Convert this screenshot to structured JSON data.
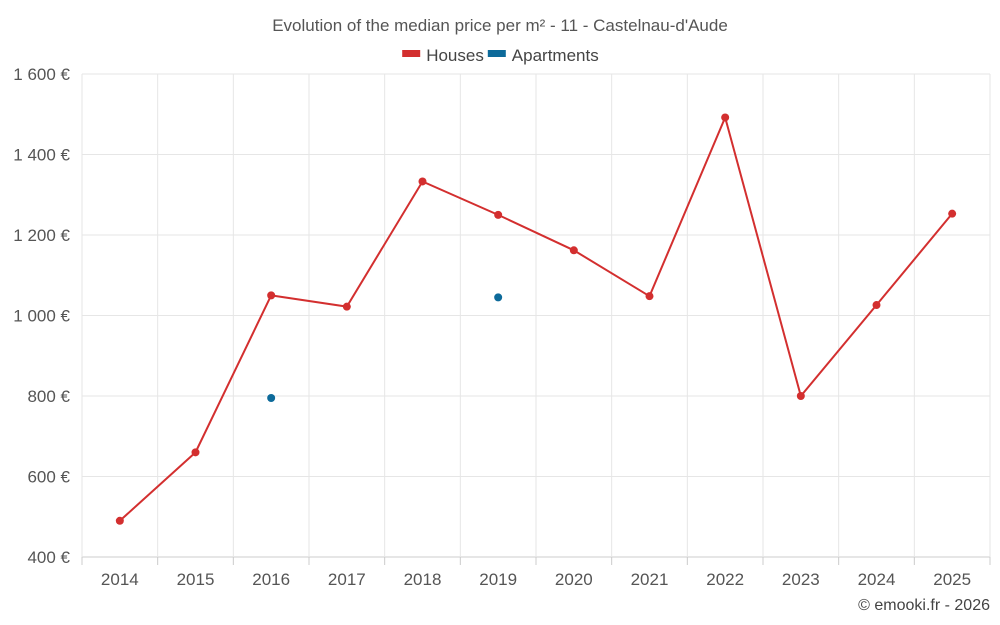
{
  "chart_data": {
    "type": "line",
    "title": "Evolution of the median price per m² - 11 - Castelnau-d'Aude",
    "categories": [
      "2014",
      "2015",
      "2016",
      "2017",
      "2018",
      "2019",
      "2020",
      "2021",
      "2022",
      "2023",
      "2024",
      "2025"
    ],
    "ylim": [
      400,
      1600
    ],
    "yticks": [
      400,
      600,
      800,
      1000,
      1200,
      1400,
      1600
    ],
    "ytick_labels": [
      "400 €",
      "600 €",
      "800 €",
      "1 000 €",
      "1 200 €",
      "1 400 €",
      "1 600 €"
    ],
    "series": [
      {
        "name": "Houses",
        "color": "#d32f2f",
        "values": [
          490,
          660,
          1050,
          1022,
          1333,
          1250,
          1162,
          1048,
          1492,
          800,
          1026,
          1253
        ]
      },
      {
        "name": "Apartments",
        "color": "#0d6a9a",
        "values": [
          null,
          null,
          795,
          null,
          null,
          1045,
          null,
          null,
          null,
          null,
          null,
          null
        ]
      }
    ],
    "legend_position": "top-center",
    "grid": true
  },
  "credit": "© emooki.fr - 2026"
}
